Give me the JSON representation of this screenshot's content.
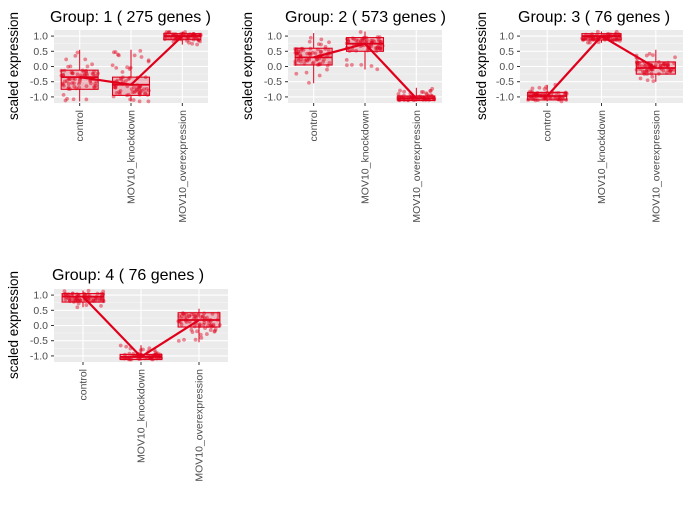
{
  "chart_data": [
    {
      "type": "box",
      "title": "Group: 1 ( 275  genes )",
      "ylabel": "scaled expression",
      "xlabel": "",
      "categories": [
        "control",
        "MOV10_knockdown",
        "MOV10_overexpression"
      ],
      "yticks": [
        "1.0",
        "0.5",
        "0.0",
        "-0.5",
        "-1.0"
      ],
      "ytick_values": [
        1.0,
        0.5,
        0.0,
        -0.5,
        -1.0
      ],
      "ylim": [
        -1.2,
        1.2
      ],
      "grid": true,
      "color": "#e0001b",
      "median_line": [
        -0.35,
        -0.6,
        1.0
      ],
      "boxes": [
        {
          "q1": -0.75,
          "median": -0.35,
          "q3": -0.12,
          "min": -1.15,
          "max": 0.55
        },
        {
          "q1": -0.95,
          "median": -0.6,
          "q3": -0.35,
          "min": -1.15,
          "max": 0.55
        },
        {
          "q1": 0.88,
          "median": 1.0,
          "q3": 1.08,
          "min": 0.72,
          "max": 1.15
        }
      ]
    },
    {
      "type": "box",
      "title": "Group: 2 ( 573  genes )",
      "ylabel": "scaled expression",
      "xlabel": "",
      "categories": [
        "control",
        "MOV10_knockdown",
        "MOV10_overexpression"
      ],
      "yticks": [
        "1.0",
        "0.5",
        "0.0",
        "-0.5",
        "-1.0"
      ],
      "ytick_values": [
        1.0,
        0.5,
        0.0,
        -0.5,
        -1.0
      ],
      "ylim": [
        -1.2,
        1.2
      ],
      "grid": true,
      "color": "#e0001b",
      "median_line": [
        0.3,
        0.75,
        -1.05
      ],
      "boxes": [
        {
          "q1": 0.05,
          "median": 0.3,
          "q3": 0.6,
          "min": -0.55,
          "max": 1.1
        },
        {
          "q1": 0.5,
          "median": 0.75,
          "q3": 0.95,
          "min": -0.1,
          "max": 1.15
        },
        {
          "q1": -1.12,
          "median": -1.05,
          "q3": -0.97,
          "min": -1.15,
          "max": -0.7
        }
      ]
    },
    {
      "type": "box",
      "title": "Group: 3 ( 76  genes )",
      "ylabel": "scaled expression",
      "xlabel": "",
      "categories": [
        "control",
        "MOV10_knockdown",
        "MOV10_overexpression"
      ],
      "yticks": [
        "1.0",
        "0.5",
        "0.0",
        "-0.5",
        "-1.0"
      ],
      "ytick_values": [
        1.0,
        0.5,
        0.0,
        -0.5,
        -1.0
      ],
      "ylim": [
        -1.2,
        1.2
      ],
      "grid": true,
      "color": "#e0001b",
      "median_line": [
        -0.97,
        1.0,
        -0.05
      ],
      "boxes": [
        {
          "q1": -1.1,
          "median": -0.97,
          "q3": -0.85,
          "min": -1.15,
          "max": -0.6
        },
        {
          "q1": 0.87,
          "median": 1.0,
          "q3": 1.08,
          "min": 0.78,
          "max": 1.15
        },
        {
          "q1": -0.25,
          "median": -0.05,
          "q3": 0.15,
          "min": -0.5,
          "max": 0.55
        }
      ]
    },
    {
      "type": "box",
      "title": "Group: 4 ( 76  genes )",
      "ylabel": "scaled expression",
      "xlabel": "",
      "categories": [
        "control",
        "MOV10_knockdown",
        "MOV10_overexpression"
      ],
      "yticks": [
        "1.0",
        "0.5",
        "0.0",
        "-0.5",
        "-1.0"
      ],
      "ytick_values": [
        1.0,
        0.5,
        0.0,
        -0.5,
        -1.0
      ],
      "ylim": [
        -1.2,
        1.2
      ],
      "grid": true,
      "color": "#e0001b",
      "median_line": [
        0.95,
        -1.03,
        0.18
      ],
      "boxes": [
        {
          "q1": 0.77,
          "median": 0.95,
          "q3": 1.05,
          "min": 0.6,
          "max": 1.15
        },
        {
          "q1": -1.12,
          "median": -1.03,
          "q3": -0.95,
          "min": -1.15,
          "max": -0.65
        },
        {
          "q1": -0.05,
          "median": 0.18,
          "q3": 0.42,
          "min": -0.55,
          "max": 0.55
        }
      ]
    }
  ]
}
